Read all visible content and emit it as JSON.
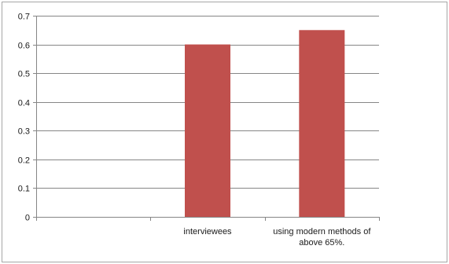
{
  "chart_data": {
    "type": "bar",
    "categories": [
      "",
      "interviewees",
      [
        "using modern methods of",
        "above 65%."
      ]
    ],
    "values": [
      null,
      0.6,
      0.65
    ],
    "ylim": [
      0,
      0.7
    ],
    "yticks": [
      "0",
      "0.1",
      "0.2",
      "0.3",
      "0.4",
      "0.5",
      "0.6",
      "0.7"
    ],
    "grid": true,
    "legend": "none",
    "colors": {
      "bar": "#c0504d",
      "grid": "#868686",
      "axis": "#868686",
      "frame": "#a6a6a6"
    }
  }
}
